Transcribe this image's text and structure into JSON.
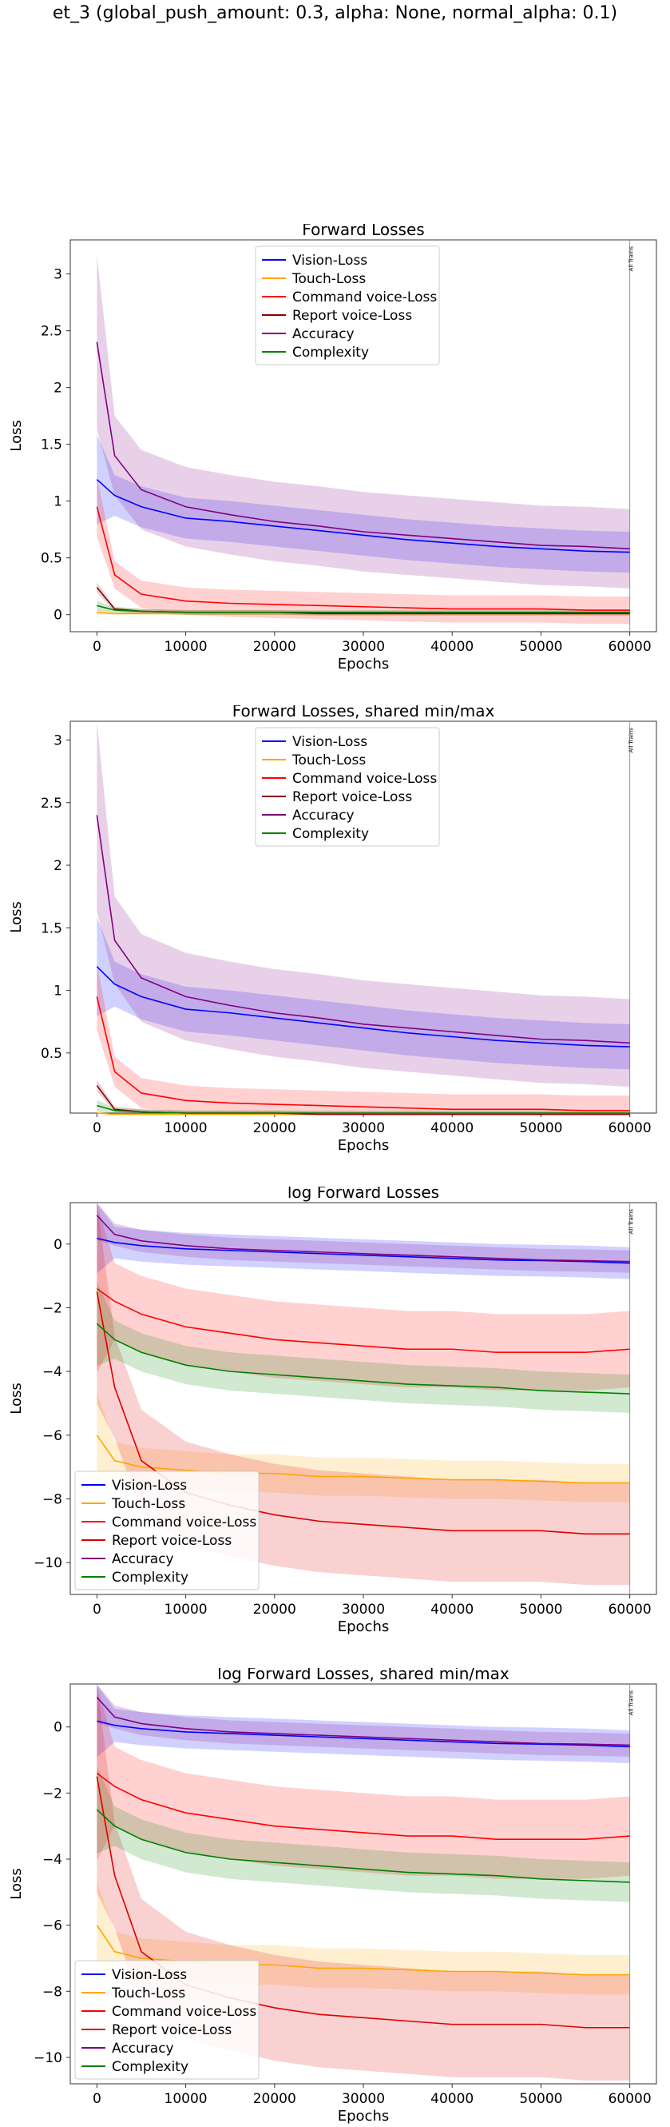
{
  "figure": {
    "suptitle": "et_3 (global_push_amount: 0.3, alpha: None, normal_alpha: 0.1)"
  },
  "chart_data": [
    {
      "type": "line",
      "title": "Forward Losses",
      "xlabel": "Epochs",
      "ylabel": "Loss",
      "xlim": [
        -3000,
        63000
      ],
      "ylim": [
        -0.15,
        3.3
      ],
      "xticks": [
        0,
        10000,
        20000,
        30000,
        40000,
        50000,
        60000
      ],
      "yticks": [
        0.0,
        0.5,
        1.0,
        1.5,
        2.0,
        2.5,
        3.0
      ],
      "vline_x": 60000,
      "vline_label": "All Trains",
      "legend_position": "upper center",
      "x": [
        0,
        2000,
        5000,
        10000,
        15000,
        20000,
        25000,
        30000,
        35000,
        40000,
        45000,
        50000,
        55000,
        60000
      ],
      "series": [
        {
          "name": "Vision-Loss",
          "color": "#0000ff",
          "values": [
            1.19,
            1.05,
            0.95,
            0.85,
            0.82,
            0.78,
            0.74,
            0.7,
            0.66,
            0.63,
            0.6,
            0.58,
            0.56,
            0.55
          ]
        },
        {
          "name": "Touch-Loss",
          "color": "#ffa500",
          "values": [
            0.02,
            0.01,
            0.01,
            0.01,
            0.01,
            0.01,
            0.01,
            0.01,
            0.01,
            0.01,
            0.01,
            0.01,
            0.01,
            0.01
          ]
        },
        {
          "name": "Command voice-Loss",
          "color": "#ff0000",
          "values": [
            0.95,
            0.35,
            0.18,
            0.12,
            0.1,
            0.09,
            0.08,
            0.07,
            0.06,
            0.05,
            0.05,
            0.05,
            0.04,
            0.04
          ]
        },
        {
          "name": "Report voice-Loss",
          "color": "#8b0000",
          "values": [
            0.24,
            0.05,
            0.03,
            0.02,
            0.02,
            0.02,
            0.01,
            0.01,
            0.01,
            0.01,
            0.01,
            0.01,
            0.01,
            0.01
          ]
        },
        {
          "name": "Accuracy",
          "color": "#800080",
          "values": [
            2.4,
            1.4,
            1.1,
            0.95,
            0.88,
            0.82,
            0.78,
            0.73,
            0.7,
            0.67,
            0.64,
            0.61,
            0.6,
            0.58
          ]
        },
        {
          "name": "Complexity",
          "color": "#008000",
          "values": [
            0.08,
            0.04,
            0.03,
            0.02,
            0.02,
            0.02,
            0.02,
            0.02,
            0.02,
            0.02,
            0.02,
            0.02,
            0.02,
            0.02
          ]
        }
      ]
    },
    {
      "type": "line",
      "title": "Forward Losses, shared min/max",
      "xlabel": "Epochs",
      "ylabel": "Loss",
      "xlim": [
        -3000,
        63000
      ],
      "ylim": [
        0.02,
        3.15
      ],
      "xticks": [
        0,
        10000,
        20000,
        30000,
        40000,
        50000,
        60000
      ],
      "yticks": [
        0.5,
        1.0,
        1.5,
        2.0,
        2.5,
        3.0
      ],
      "vline_x": 60000,
      "vline_label": "All Trains",
      "legend_position": "upper center",
      "x": [
        0,
        2000,
        5000,
        10000,
        15000,
        20000,
        25000,
        30000,
        35000,
        40000,
        45000,
        50000,
        55000,
        60000
      ],
      "series": [
        {
          "name": "Vision-Loss",
          "color": "#0000ff",
          "values": [
            1.19,
            1.05,
            0.95,
            0.85,
            0.82,
            0.78,
            0.74,
            0.7,
            0.66,
            0.63,
            0.6,
            0.58,
            0.56,
            0.55
          ]
        },
        {
          "name": "Touch-Loss",
          "color": "#ffa500",
          "values": [
            0.02,
            0.01,
            0.01,
            0.01,
            0.01,
            0.01,
            0.01,
            0.01,
            0.01,
            0.01,
            0.01,
            0.01,
            0.01,
            0.01
          ]
        },
        {
          "name": "Command voice-Loss",
          "color": "#ff0000",
          "values": [
            0.95,
            0.35,
            0.18,
            0.12,
            0.1,
            0.09,
            0.08,
            0.07,
            0.06,
            0.05,
            0.05,
            0.05,
            0.04,
            0.04
          ]
        },
        {
          "name": "Report voice-Loss",
          "color": "#8b0000",
          "values": [
            0.24,
            0.05,
            0.03,
            0.02,
            0.02,
            0.02,
            0.01,
            0.01,
            0.01,
            0.01,
            0.01,
            0.01,
            0.01,
            0.01
          ]
        },
        {
          "name": "Accuracy",
          "color": "#800080",
          "values": [
            2.4,
            1.4,
            1.1,
            0.95,
            0.88,
            0.82,
            0.78,
            0.73,
            0.7,
            0.67,
            0.64,
            0.61,
            0.6,
            0.58
          ]
        },
        {
          "name": "Complexity",
          "color": "#008000",
          "values": [
            0.08,
            0.04,
            0.03,
            0.02,
            0.02,
            0.02,
            0.02,
            0.02,
            0.02,
            0.02,
            0.02,
            0.02,
            0.02,
            0.02
          ]
        }
      ]
    },
    {
      "type": "line",
      "title": "log Forward Losses",
      "xlabel": "Epochs",
      "ylabel": "Loss",
      "xlim": [
        -3000,
        63000
      ],
      "ylim": [
        -11.0,
        1.3
      ],
      "xticks": [
        0,
        10000,
        20000,
        30000,
        40000,
        50000,
        60000
      ],
      "yticks": [
        0,
        -2,
        -4,
        -6,
        -8,
        -10
      ],
      "vline_x": 60000,
      "vline_label": "All Trains",
      "legend_position": "lower left",
      "x": [
        0,
        2000,
        5000,
        10000,
        15000,
        20000,
        25000,
        30000,
        35000,
        40000,
        45000,
        50000,
        55000,
        60000
      ],
      "series": [
        {
          "name": "Vision-Loss",
          "color": "#0000ff",
          "values": [
            0.18,
            0.05,
            -0.05,
            -0.15,
            -0.2,
            -0.25,
            -0.3,
            -0.35,
            -0.4,
            -0.45,
            -0.5,
            -0.52,
            -0.55,
            -0.6
          ]
        },
        {
          "name": "Touch-Loss",
          "color": "#ffa500",
          "values": [
            -6.0,
            -6.8,
            -7.0,
            -7.1,
            -7.2,
            -7.2,
            -7.3,
            -7.3,
            -7.35,
            -7.4,
            -7.4,
            -7.45,
            -7.5,
            -7.5
          ]
        },
        {
          "name": "Command voice-Loss",
          "color": "#ff0000",
          "values": [
            -1.4,
            -1.8,
            -2.2,
            -2.6,
            -2.8,
            -3.0,
            -3.1,
            -3.2,
            -3.3,
            -3.3,
            -3.4,
            -3.4,
            -3.4,
            -3.3
          ]
        },
        {
          "name": "Report voice-Loss",
          "color": "#dd0000",
          "values": [
            -1.5,
            -4.5,
            -6.8,
            -7.8,
            -8.2,
            -8.5,
            -8.7,
            -8.8,
            -8.9,
            -9.0,
            -9.0,
            -9.0,
            -9.1,
            -9.1
          ]
        },
        {
          "name": "Accuracy",
          "color": "#800080",
          "values": [
            0.9,
            0.3,
            0.1,
            -0.05,
            -0.15,
            -0.2,
            -0.25,
            -0.3,
            -0.35,
            -0.4,
            -0.45,
            -0.5,
            -0.52,
            -0.55
          ]
        },
        {
          "name": "Complexity",
          "color": "#008000",
          "values": [
            -2.5,
            -3.0,
            -3.4,
            -3.8,
            -4.0,
            -4.1,
            -4.2,
            -4.3,
            -4.4,
            -4.45,
            -4.5,
            -4.6,
            -4.65,
            -4.7
          ]
        }
      ]
    },
    {
      "type": "line",
      "title": "log Forward Losses, shared min/max",
      "xlabel": "Epochs",
      "ylabel": "Loss",
      "xlim": [
        -3000,
        63000
      ],
      "ylim": [
        -10.8,
        1.3
      ],
      "xticks": [
        0,
        10000,
        20000,
        30000,
        40000,
        50000,
        60000
      ],
      "yticks": [
        0,
        -2,
        -4,
        -6,
        -8,
        -10
      ],
      "vline_x": 60000,
      "vline_label": "All Trains",
      "legend_position": "lower left",
      "x": [
        0,
        2000,
        5000,
        10000,
        15000,
        20000,
        25000,
        30000,
        35000,
        40000,
        45000,
        50000,
        55000,
        60000
      ],
      "series": [
        {
          "name": "Vision-Loss",
          "color": "#0000ff",
          "values": [
            0.18,
            0.05,
            -0.05,
            -0.15,
            -0.2,
            -0.25,
            -0.3,
            -0.35,
            -0.4,
            -0.45,
            -0.5,
            -0.52,
            -0.55,
            -0.6
          ]
        },
        {
          "name": "Touch-Loss",
          "color": "#ffa500",
          "values": [
            -6.0,
            -6.8,
            -7.0,
            -7.1,
            -7.2,
            -7.2,
            -7.3,
            -7.3,
            -7.35,
            -7.4,
            -7.4,
            -7.45,
            -7.5,
            -7.5
          ]
        },
        {
          "name": "Command voice-Loss",
          "color": "#ff0000",
          "values": [
            -1.4,
            -1.8,
            -2.2,
            -2.6,
            -2.8,
            -3.0,
            -3.1,
            -3.2,
            -3.3,
            -3.3,
            -3.4,
            -3.4,
            -3.4,
            -3.3
          ]
        },
        {
          "name": "Report voice-Loss",
          "color": "#dd0000",
          "values": [
            -1.5,
            -4.5,
            -6.8,
            -7.8,
            -8.2,
            -8.5,
            -8.7,
            -8.8,
            -8.9,
            -9.0,
            -9.0,
            -9.0,
            -9.1,
            -9.1
          ]
        },
        {
          "name": "Accuracy",
          "color": "#800080",
          "values": [
            0.9,
            0.3,
            0.1,
            -0.05,
            -0.15,
            -0.2,
            -0.25,
            -0.3,
            -0.35,
            -0.4,
            -0.45,
            -0.5,
            -0.52,
            -0.55
          ]
        },
        {
          "name": "Complexity",
          "color": "#008000",
          "values": [
            -2.5,
            -3.0,
            -3.4,
            -3.8,
            -4.0,
            -4.1,
            -4.2,
            -4.3,
            -4.4,
            -4.45,
            -4.5,
            -4.6,
            -4.65,
            -4.7
          ]
        }
      ]
    }
  ]
}
